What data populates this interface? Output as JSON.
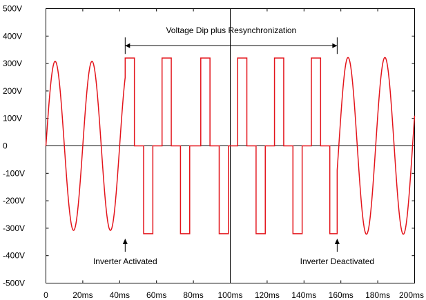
{
  "chart_data": {
    "type": "line",
    "title": "",
    "xlabel": "",
    "ylabel": "",
    "xlim": [
      0,
      200
    ],
    "ylim": [
      -500,
      500
    ],
    "x_ticks": [
      0,
      20,
      40,
      60,
      80,
      100,
      120,
      140,
      160,
      180,
      200
    ],
    "x_tick_labels": [
      "0",
      "20ms",
      "40ms",
      "60ms",
      "80ms",
      "100ms",
      "120ms",
      "140ms",
      "160ms",
      "180ms",
      "200ms"
    ],
    "y_ticks": [
      500,
      400,
      300,
      200,
      100,
      0,
      -100,
      -200,
      -300,
      -400,
      -500
    ],
    "y_tick_labels": [
      "500V",
      "400V",
      "300V",
      "200V",
      "100V",
      "0",
      "-100V",
      "-200V",
      "-300V",
      "-400V",
      "-500V"
    ],
    "grid": false,
    "color": "#e3141b",
    "series": [
      {
        "segments": [
          {
            "kind": "sine",
            "amplitude_v": 308,
            "frequency_hz": 50,
            "phase_deg": 0,
            "x_start": 0,
            "x_end": 43
          },
          {
            "kind": "polyline",
            "x": [
              43,
              43,
              48,
              48,
              53,
              53,
              58,
              58,
              63,
              63,
              68,
              68,
              73,
              73,
              78,
              78,
              84,
              84,
              89,
              89,
              94,
              94,
              99,
              99,
              104,
              104,
              109,
              109,
              114,
              114,
              119,
              119,
              124,
              124,
              129,
              129,
              134,
              134,
              139,
              139,
              144,
              144,
              149,
              149,
              154,
              154,
              158
            ],
            "y": [
              250,
              320,
              320,
              0,
              0,
              -320,
              -320,
              0,
              0,
              320,
              320,
              0,
              0,
              -320,
              -320,
              0,
              0,
              320,
              320,
              0,
              0,
              -320,
              -320,
              0,
              0,
              320,
              320,
              0,
              0,
              -320,
              -320,
              0,
              0,
              320,
              320,
              0,
              0,
              -320,
              -320,
              0,
              0,
              320,
              320,
              0,
              0,
              -320,
              -320
            ]
          },
          {
            "kind": "sine",
            "amplitude_v": 322,
            "frequency_hz": 50,
            "phase_deg": 20,
            "x_start": 158,
            "x_end": 200
          }
        ]
      }
    ],
    "annotations": {
      "span": {
        "label": "Voltage Dip plus Resynchronization",
        "x_start": 43,
        "x_end": 158,
        "y": 370
      },
      "markers": [
        {
          "label": "Inverter Activated",
          "x": 43
        },
        {
          "label": "Inverter Deactivated",
          "x": 158
        }
      ]
    }
  }
}
